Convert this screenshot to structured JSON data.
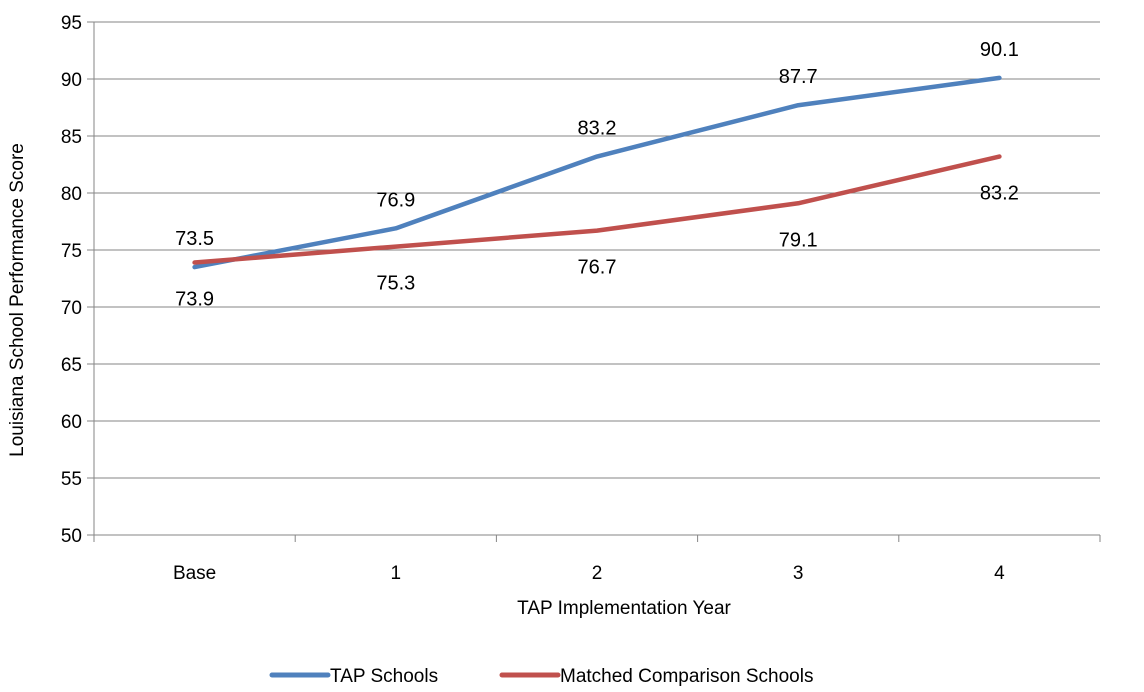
{
  "chart_data": {
    "type": "line",
    "categories": [
      "Base",
      "1",
      "2",
      "3",
      "4"
    ],
    "series": [
      {
        "name": "TAP Schools",
        "values": [
          73.5,
          76.9,
          83.2,
          87.7,
          90.1
        ],
        "color": "#4F81BD",
        "label_position": "above"
      },
      {
        "name": "Matched Comparison Schools",
        "values": [
          73.9,
          75.3,
          76.7,
          79.1,
          83.2
        ],
        "color": "#C0504D",
        "label_position": "below"
      }
    ],
    "xlabel": "TAP Implementation Year",
    "ylabel": "Louisiana School Performance Score",
    "ylim": [
      50,
      95
    ],
    "yticks": [
      50,
      55,
      60,
      65,
      70,
      75,
      80,
      85,
      90,
      95
    ],
    "grid": true,
    "legend_position": "bottom"
  }
}
